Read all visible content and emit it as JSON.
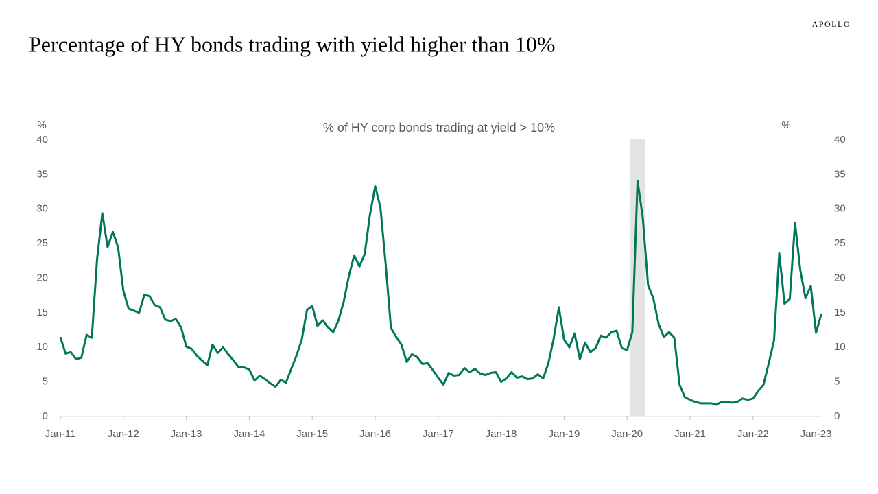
{
  "brand": "APOLLO",
  "chart_data": {
    "type": "line",
    "title": "Percentage of HY bonds trading with yield higher than 10%",
    "subtitle": "% of HY corp bonds trading at yield > 10%",
    "ylabel": "%",
    "y2label": "%",
    "categories": [
      "Jan-11",
      null,
      null,
      null,
      null,
      null,
      null,
      null,
      null,
      null,
      null,
      null,
      "Jan-12",
      null,
      null,
      null,
      null,
      null,
      null,
      null,
      null,
      null,
      null,
      null,
      "Jan-13",
      null,
      null,
      null,
      null,
      null,
      null,
      null,
      null,
      null,
      null,
      null,
      "Jan-14",
      null,
      null,
      null,
      null,
      null,
      null,
      null,
      null,
      null,
      null,
      null,
      "Jan-15",
      null,
      null,
      null,
      null,
      null,
      null,
      null,
      null,
      null,
      null,
      null,
      "Jan-16",
      null,
      null,
      null,
      null,
      null,
      null,
      null,
      null,
      null,
      null,
      null,
      "Jan-17",
      null,
      null,
      null,
      null,
      null,
      null,
      null,
      null,
      null,
      null,
      null,
      "Jan-18",
      null,
      null,
      null,
      null,
      null,
      null,
      null,
      null,
      null,
      null,
      null,
      "Jan-19",
      null,
      null,
      null,
      null,
      null,
      null,
      null,
      null,
      null,
      null,
      null,
      "Jan-20",
      null,
      null,
      null,
      null,
      null,
      null,
      null,
      null,
      null,
      null,
      null,
      "Jan-21",
      null,
      null,
      null,
      null,
      null,
      null,
      null,
      null,
      null,
      null,
      null,
      "Jan-22",
      null,
      null,
      null,
      null,
      null,
      null,
      null,
      null,
      null,
      null,
      null,
      "Jan-23",
      null
    ],
    "series": [
      {
        "name": "% of HY corp bonds trading at yield > 10%",
        "color": "#00775a",
        "values": [
          11.5,
          9.1,
          9.3,
          8.3,
          8.5,
          11.8,
          11.4,
          22.8,
          29.4,
          24.5,
          26.7,
          24.5,
          18.2,
          15.6,
          15.3,
          15.0,
          17.6,
          17.4,
          16.1,
          15.8,
          14.0,
          13.8,
          14.1,
          12.9,
          10.1,
          9.8,
          8.8,
          8.1,
          7.4,
          10.4,
          9.2,
          10.0,
          9.0,
          8.1,
          7.1,
          7.1,
          6.8,
          5.2,
          5.9,
          5.4,
          4.8,
          4.3,
          5.3,
          4.9,
          6.9,
          8.8,
          11.1,
          15.4,
          16.0,
          13.1,
          13.9,
          12.9,
          12.2,
          13.9,
          16.6,
          20.4,
          23.3,
          21.7,
          23.5,
          29.2,
          33.3,
          30.2,
          22.0,
          12.8,
          11.5,
          10.4,
          7.9,
          9.0,
          8.6,
          7.6,
          7.7,
          6.7,
          5.6,
          4.6,
          6.3,
          5.9,
          6.0,
          7.0,
          6.4,
          6.9,
          6.2,
          6.0,
          6.3,
          6.4,
          5.0,
          5.5,
          6.4,
          5.6,
          5.8,
          5.4,
          5.5,
          6.1,
          5.5,
          7.7,
          11.2,
          15.8,
          11.1,
          10.0,
          12.0,
          8.3,
          10.7,
          9.3,
          9.9,
          11.7,
          11.4,
          12.2,
          12.4,
          9.9,
          9.6,
          12.2,
          34.1,
          28.7,
          19.0,
          17.1,
          13.4,
          11.5,
          12.2,
          11.4,
          4.6,
          2.8,
          2.4,
          2.1,
          1.9,
          1.9,
          1.9,
          1.7,
          2.1,
          2.1,
          2.0,
          2.1,
          2.6,
          2.4,
          2.6,
          3.7,
          4.6,
          7.7,
          11.0,
          23.6,
          16.3,
          17.0,
          28.0,
          21.2,
          17.1,
          18.9,
          12.1,
          14.8
        ]
      }
    ],
    "shading": {
      "start": 108.6,
      "end": 111.5,
      "color": "#e3e3e3"
    },
    "ylim": [
      0,
      40
    ],
    "yticks": [
      0,
      5,
      10,
      15,
      20,
      25,
      30,
      35,
      40
    ],
    "y2lim": [
      0,
      40
    ],
    "y2ticks": [
      0,
      5,
      10,
      15,
      20,
      25,
      30,
      35,
      40
    ],
    "grid": false
  }
}
